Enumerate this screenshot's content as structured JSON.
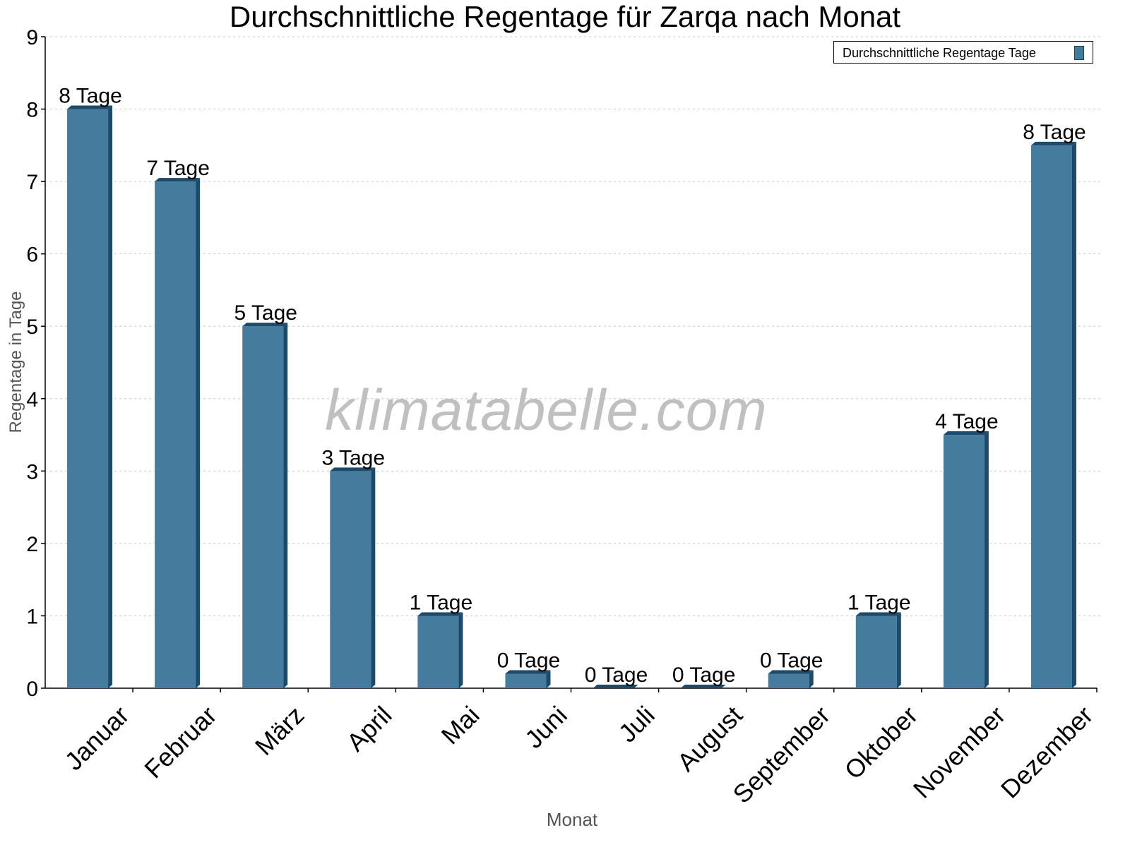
{
  "chart_data": {
    "type": "bar",
    "title": "Durchschnittliche Regentage für Zarqa nach Monat",
    "xlabel": "Monat",
    "ylabel": "Regentage in Tage",
    "ylim": [
      0,
      9
    ],
    "yticks": [
      0,
      1,
      2,
      3,
      4,
      5,
      6,
      7,
      8,
      9
    ],
    "grid": true,
    "legend_position": "top-right",
    "categories": [
      "Januar",
      "Februar",
      "März",
      "April",
      "Mai",
      "Juni",
      "Juli",
      "August",
      "September",
      "Oktober",
      "November",
      "Dezember"
    ],
    "series": [
      {
        "name": "Durchschnittliche Regentage Tage",
        "values": [
          8,
          7,
          5,
          3,
          1,
          0.2,
          0,
          0,
          0.2,
          1,
          3.5,
          7.5
        ],
        "labels": [
          "8 Tage",
          "7 Tage",
          "5 Tage",
          "3 Tage",
          "1 Tage",
          "0 Tage",
          "0 Tage",
          "0 Tage",
          "0 Tage",
          "1 Tage",
          "4 Tage",
          "8 Tage"
        ],
        "color": "#457b9d"
      }
    ],
    "watermark": "klimatabelle.com"
  }
}
